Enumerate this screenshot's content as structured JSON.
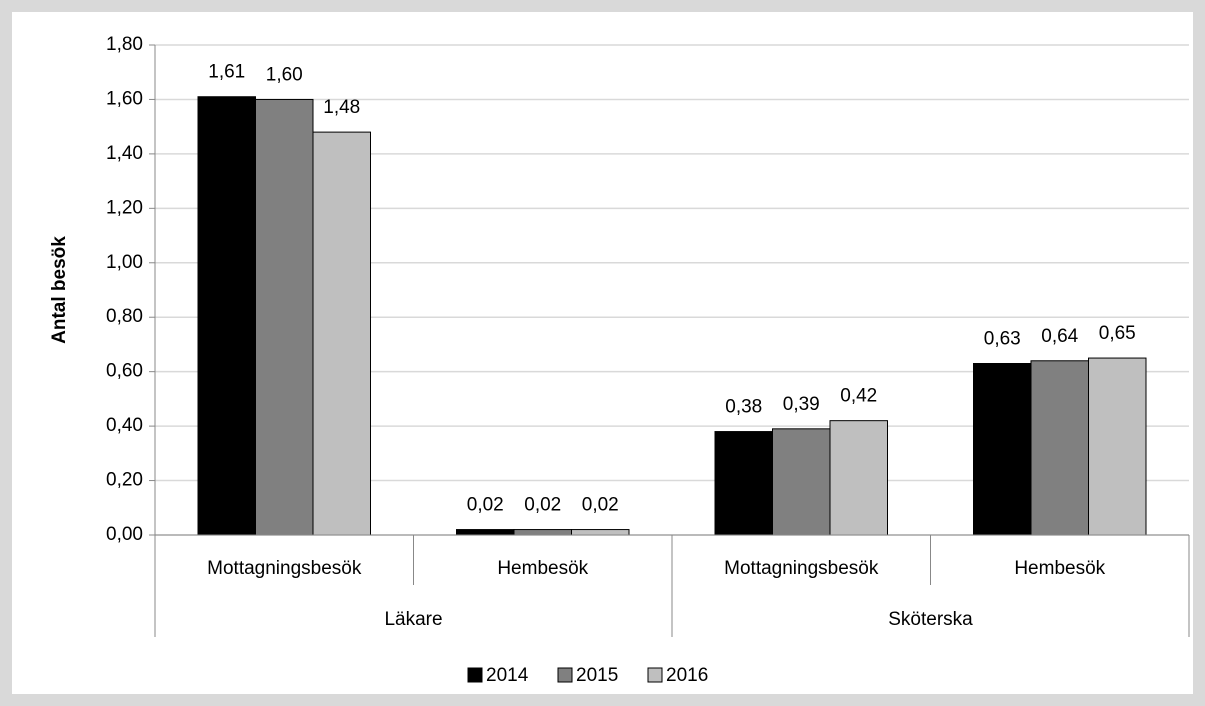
{
  "chart_data": {
    "type": "bar",
    "y_label": "Antal besök",
    "groups": [
      {
        "name": "Läkare",
        "categories": [
          "Mottagningsbesök",
          "Hembesök"
        ]
      },
      {
        "name": "Sköterska",
        "categories": [
          "Mottagningsbesök",
          "Hembesök"
        ]
      }
    ],
    "series": [
      {
        "name": "2014",
        "color": "#000000",
        "values": [
          1.61,
          0.02,
          0.38,
          0.63
        ],
        "value_labels": [
          "1,61",
          "0,02",
          "0,38",
          "0,63"
        ]
      },
      {
        "name": "2015",
        "color": "#808080",
        "values": [
          1.6,
          0.02,
          0.39,
          0.64
        ],
        "value_labels": [
          "1,60",
          "0,02",
          "0,39",
          "0,64"
        ]
      },
      {
        "name": "2016",
        "color": "#bfbfbf",
        "values": [
          1.48,
          0.02,
          0.42,
          0.65
        ],
        "value_labels": [
          "1,48",
          "0,02",
          "0,42",
          "0,65"
        ]
      }
    ],
    "ylim": [
      0,
      1.8
    ],
    "yticks": [
      {
        "value": 0,
        "label": "0,00"
      },
      {
        "value": 0.2,
        "label": "0,20"
      },
      {
        "value": 0.4,
        "label": "0,40"
      },
      {
        "value": 0.6,
        "label": "0,60"
      },
      {
        "value": 0.8,
        "label": "0,80"
      },
      {
        "value": 1.0,
        "label": "1,00"
      },
      {
        "value": 1.2,
        "label": "1,20"
      },
      {
        "value": 1.4,
        "label": "1,40"
      },
      {
        "value": 1.6,
        "label": "1,60"
      },
      {
        "value": 1.8,
        "label": "1,80"
      }
    ],
    "grid": true,
    "legend": "bottom"
  }
}
